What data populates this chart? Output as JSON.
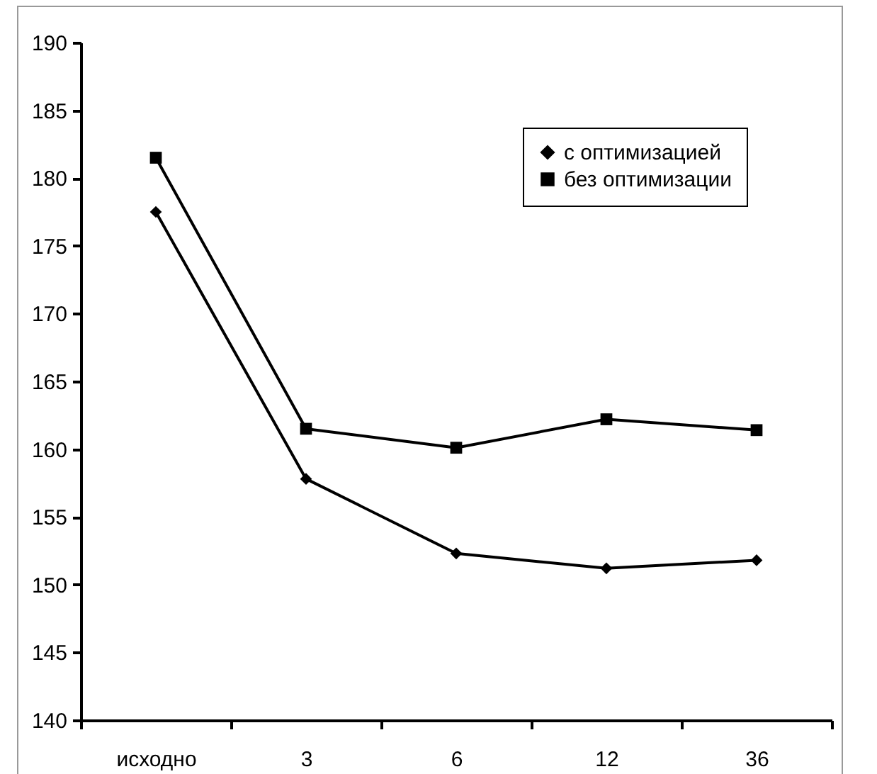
{
  "chart_data": {
    "type": "line",
    "categories": [
      "исходно",
      "3",
      "6",
      "12",
      "36"
    ],
    "series": [
      {
        "name": "с оптимизацией",
        "color": "#000000",
        "marker": "diamond",
        "values": [
          177.5,
          157.8,
          152.3,
          151.2,
          151.8
        ]
      },
      {
        "name": "без оптимизации",
        "color": "#000000",
        "marker": "square",
        "values": [
          181.5,
          161.5,
          160.1,
          162.2,
          161.4
        ]
      }
    ],
    "ylim": [
      140,
      190
    ],
    "yticks": [
      140,
      145,
      150,
      155,
      160,
      165,
      170,
      175,
      180,
      185,
      190
    ],
    "grid": false,
    "legend": "top right",
    "line_style": "solid"
  }
}
